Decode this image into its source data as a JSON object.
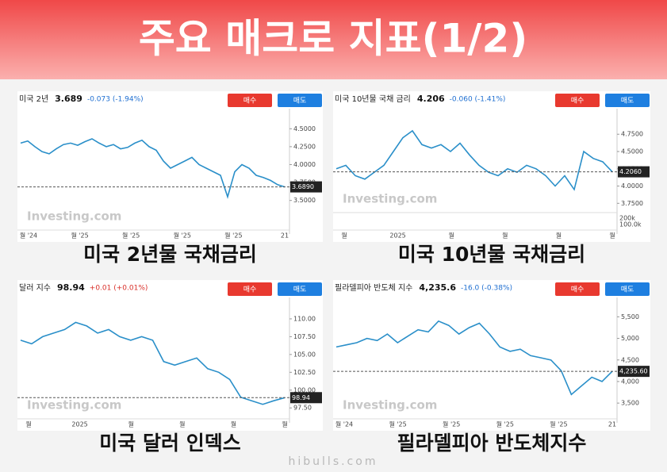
{
  "header": {
    "title": "주요 매크로 지표(1/2)"
  },
  "footer": "hibulls.com",
  "chart_data": [
    {
      "type": "line",
      "name": "미국 2년",
      "price": "3.689",
      "change": "-0.073 (-1.94%)",
      "change_color": "#1f6fd1",
      "buy": "매수",
      "sell": "매도",
      "watermark": "Investing.com",
      "caption": "미국 2년물 국채금리",
      "color": "#2a8fc9",
      "values": [
        4.3,
        4.33,
        4.25,
        4.18,
        4.15,
        4.22,
        4.28,
        4.3,
        4.27,
        4.32,
        4.36,
        4.3,
        4.25,
        4.28,
        4.22,
        4.24,
        4.3,
        4.34,
        4.25,
        4.2,
        4.05,
        3.95,
        4.0,
        4.05,
        4.1,
        4.0,
        3.95,
        3.9,
        3.85,
        3.55,
        3.9,
        4.0,
        3.95,
        3.85,
        3.82,
        3.78,
        3.72,
        3.689
      ],
      "ylim": [
        3.12,
        4.78
      ],
      "yticks": [
        {
          "value": 4.5,
          "label": "4.5000"
        },
        {
          "value": 4.25,
          "label": "4.2500"
        },
        {
          "value": 4.0,
          "label": "4.0000"
        },
        {
          "value": 3.75,
          "label": "3.7500"
        },
        {
          "value": 3.5,
          "label": "3.5000"
        }
      ],
      "last": {
        "value": 3.689,
        "label": "3.6890"
      },
      "xlabels": [
        "월 '24",
        "월 '25",
        "월 '25",
        "월 '25",
        "월 '25",
        "21"
      ]
    },
    {
      "type": "line",
      "name": "미국 10년물 국채 금리",
      "price": "4.206",
      "change": "-0.060 (-1.41%)",
      "change_color": "#1f6fd1",
      "buy": "매수",
      "sell": "매도",
      "watermark": "Investing.com",
      "caption": "미국 10년물 국채금리",
      "color": "#2a8fc9",
      "values": [
        4.25,
        4.3,
        4.15,
        4.1,
        4.2,
        4.3,
        4.5,
        4.7,
        4.8,
        4.6,
        4.55,
        4.6,
        4.5,
        4.62,
        4.45,
        4.3,
        4.2,
        4.15,
        4.25,
        4.2,
        4.3,
        4.25,
        4.15,
        4.0,
        4.15,
        3.95,
        4.5,
        4.4,
        4.35,
        4.206
      ],
      "ylim": [
        3.65,
        5.12
      ],
      "yticks": [
        {
          "value": 4.75,
          "label": "4.7500"
        },
        {
          "value": 4.5,
          "label": "4.5000"
        },
        {
          "value": 4.25,
          "label": "4.2500"
        },
        {
          "value": 4.0,
          "label": "4.0000"
        },
        {
          "value": 3.75,
          "label": "3.7500"
        }
      ],
      "last": {
        "value": 4.206,
        "label": "4.2060"
      },
      "volume_ticks": [
        "200k",
        "100.0k"
      ],
      "xlabels": [
        "월",
        "2025",
        "월",
        "월",
        "월",
        "월"
      ]
    },
    {
      "type": "line",
      "name": "달러 지수",
      "price": "98.94",
      "change": "+0.01 (+0.01%)",
      "change_color": "#d9302a",
      "buy": "매수",
      "sell": "매도",
      "watermark": "Investing.com",
      "caption": "미국 달러 인덱스",
      "color": "#2a8fc9",
      "values": [
        107,
        106.5,
        107.5,
        108,
        108.5,
        109.5,
        109,
        108,
        108.5,
        107.5,
        107,
        107.5,
        107,
        104,
        103.5,
        104,
        104.5,
        103,
        102.5,
        101.5,
        99,
        98.5,
        98,
        98.5,
        98.94
      ],
      "ylim": [
        96.3,
        113.0
      ],
      "yticks": [
        {
          "value": 110,
          "label": "110.00"
        },
        {
          "value": 107.5,
          "label": "107.50"
        },
        {
          "value": 105,
          "label": "105.00"
        },
        {
          "value": 102.5,
          "label": "102.50"
        },
        {
          "value": 100,
          "label": "100.00"
        },
        {
          "value": 97.5,
          "label": "97.50"
        }
      ],
      "last": {
        "value": 98.94,
        "label": "98.94"
      },
      "xlabels": [
        "월",
        "2025",
        "월",
        "월",
        "월",
        "월"
      ]
    },
    {
      "type": "line",
      "name": "필라델피아 반도체 지수",
      "price": "4,235.6",
      "change": "-16.0 (-0.38%)",
      "change_color": "#1f6fd1",
      "buy": "매수",
      "sell": "매도",
      "watermark": "Investing.com",
      "caption": "필라델피아 반도체지수",
      "color": "#2a8fc9",
      "values": [
        4800,
        4850,
        4900,
        5000,
        4950,
        5100,
        4900,
        5050,
        5200,
        5150,
        5400,
        5300,
        5100,
        5250,
        5350,
        5100,
        4800,
        4700,
        4750,
        4600,
        4550,
        4500,
        4250,
        3700,
        3900,
        4100,
        4000,
        4235.6
      ],
      "ylim": [
        3190,
        5948
      ],
      "yticks": [
        {
          "value": 5500,
          "label": "5,500"
        },
        {
          "value": 5000,
          "label": "5,000"
        },
        {
          "value": 4500,
          "label": "4,500"
        },
        {
          "value": 4000,
          "label": "4,000"
        },
        {
          "value": 3500,
          "label": "3,500"
        }
      ],
      "last": {
        "value": 4235.6,
        "label": "4,235.60"
      },
      "xlabels": [
        "월 '24",
        "월 '25",
        "월 '25",
        "월 '25",
        "월 '25",
        "21"
      ]
    }
  ]
}
